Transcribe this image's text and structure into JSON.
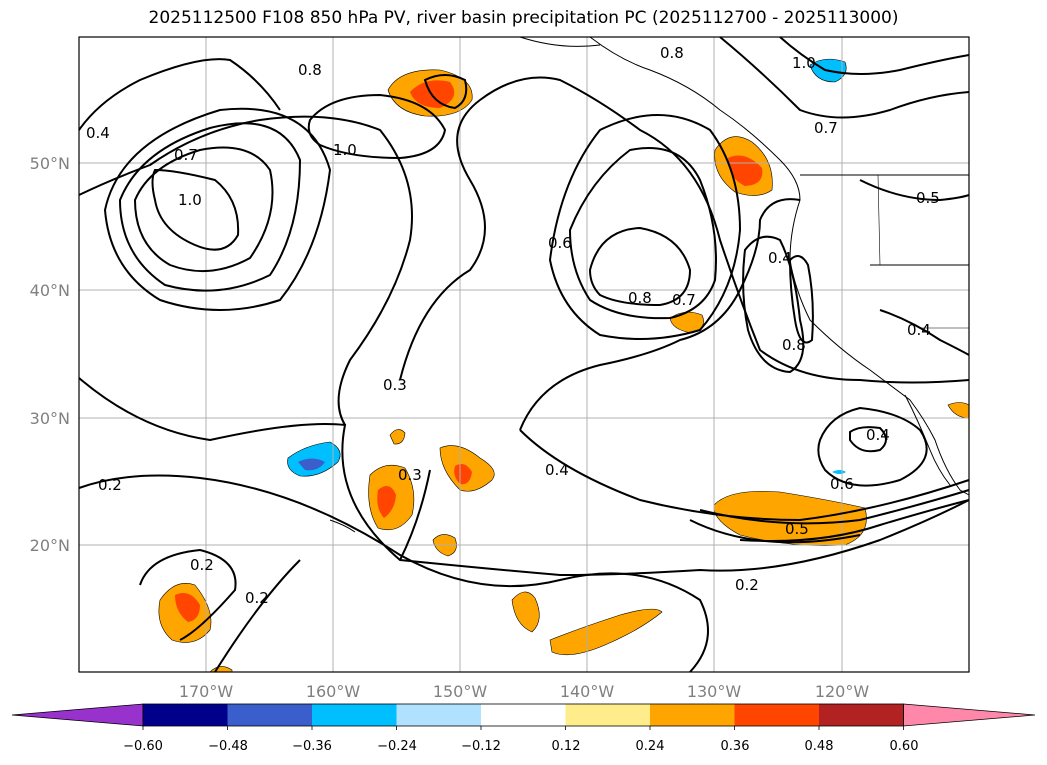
{
  "title": "2025112500 F108 850 hPa PV, river basin precipitation PC (2025112700 - 2025113000)",
  "map": {
    "lon_labels": [
      "170°W",
      "160°W",
      "150°W",
      "140°W",
      "130°W",
      "120°W"
    ],
    "lat_labels": [
      "50°N",
      "40°N",
      "30°N",
      "20°N"
    ],
    "contour_labels": [
      {
        "text": "0.8"
      },
      {
        "text": "0.4"
      },
      {
        "text": "0.7"
      },
      {
        "text": "1.0"
      },
      {
        "text": "1.0"
      },
      {
        "text": "0.8"
      },
      {
        "text": "1.0"
      },
      {
        "text": "0.7"
      },
      {
        "text": "0.5"
      },
      {
        "text": "0.6"
      },
      {
        "text": "0.8"
      },
      {
        "text": "0.7"
      },
      {
        "text": "0.4"
      },
      {
        "text": "0.8"
      },
      {
        "text": "0.4"
      },
      {
        "text": "0.3"
      },
      {
        "text": "0.3"
      },
      {
        "text": "0.4"
      },
      {
        "text": "0.6"
      },
      {
        "text": "0.4"
      },
      {
        "text": "0.5"
      },
      {
        "text": "0.2"
      },
      {
        "text": "0.2"
      },
      {
        "text": "0.2"
      },
      {
        "text": "0.2"
      }
    ]
  },
  "colorbar": {
    "ticks": [
      "−0.60",
      "−0.48",
      "−0.36",
      "−0.24",
      "−0.12",
      "0.12",
      "0.24",
      "0.36",
      "0.48",
      "0.60"
    ],
    "colors": [
      "#9932cc",
      "#00008b",
      "#3a5fcd",
      "#00bfff",
      "#b0e2ff",
      "#ffffff",
      "#ffec8b",
      "#ffa500",
      "#ff4500",
      "#b22222",
      "#ff88aa"
    ]
  }
}
